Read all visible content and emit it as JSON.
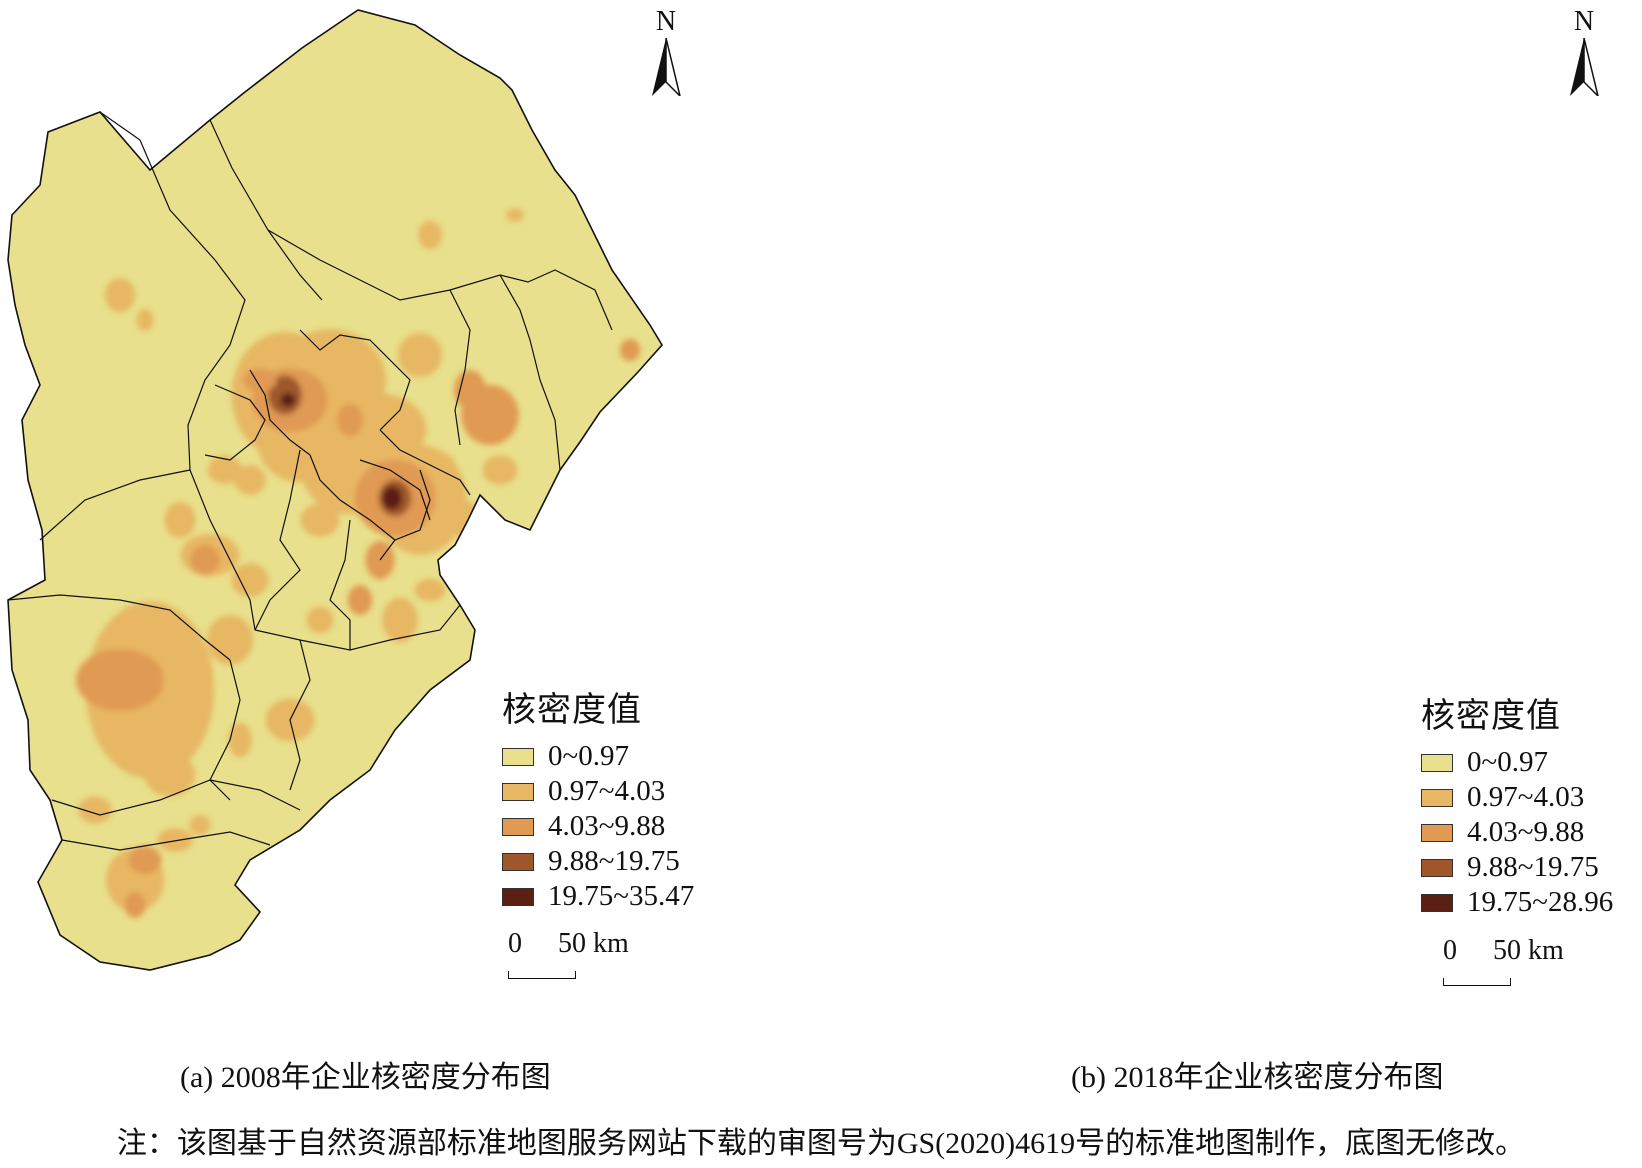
{
  "colors": {
    "class_1": "#e8e08c",
    "class_2": "#e7b764",
    "class_3": "#e09a52",
    "class_4": "#9e562a",
    "class_5": "#5c1f14",
    "boundary": "#111111"
  },
  "north_arrow": {
    "letter": "N"
  },
  "legend_title": "核密度值",
  "scale_bar": {
    "zero_label": "0",
    "end_label": "50 km"
  },
  "maps": [
    {
      "id": "a",
      "caption": "(a) 2008年企业核密度分布图",
      "legend_classes": [
        "0~0.97",
        "0.97~4.03",
        "4.03~9.88",
        "9.88~19.75",
        "19.75~35.47"
      ]
    },
    {
      "id": "b",
      "caption": "(b) 2018年企业核密度分布图",
      "legend_classes": [
        "0~0.97",
        "0.97~4.03",
        "4.03~9.88",
        "9.88~19.75",
        "19.75~28.96"
      ]
    }
  ],
  "footnote": "注：该图基于自然资源部标准地图服务网站下载的审图号为GS(2020)4619号的标准地图制作，底图无修改。"
}
